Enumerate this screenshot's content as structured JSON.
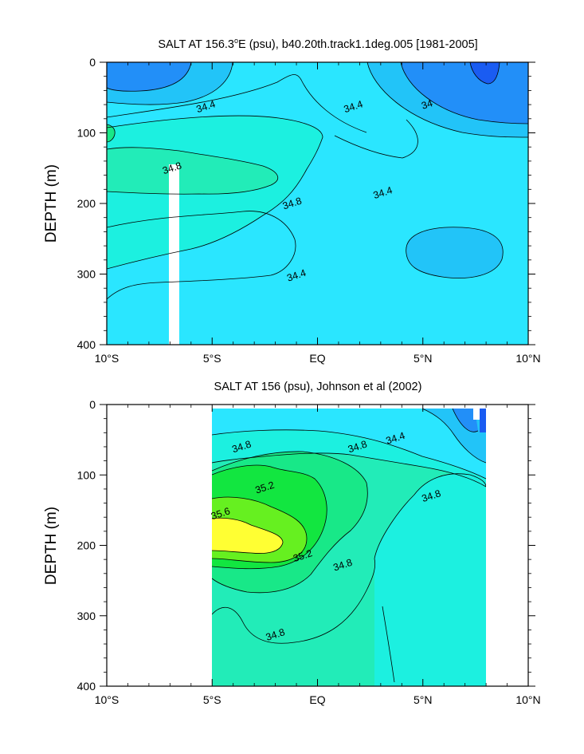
{
  "chart_data": [
    {
      "type": "heatmap",
      "subtype": "filled-contour",
      "title_prefix": "SALT AT 156.3",
      "title_sup": "o",
      "title_suffix": "E (psu), b40.20th.track1.1deg.005 [1981-2005]",
      "ylabel": "DEPTH (m)",
      "xlabel": "",
      "x_ticks": [
        {
          "value": -10,
          "label": "10°S"
        },
        {
          "value": -5,
          "label": "5°S"
        },
        {
          "value": 0,
          "label": "EQ"
        },
        {
          "value": 5,
          "label": "5°N"
        },
        {
          "value": 10,
          "label": "10°N"
        }
      ],
      "y_ticks": [
        0,
        100,
        200,
        300,
        400
      ],
      "xlim": [
        -10,
        10
      ],
      "ylim": [
        400,
        0
      ],
      "y_reversed": true,
      "missing_data_column_lat": [
        -7.0,
        -6.6
      ],
      "missing_data_column_depth": [
        145,
        400
      ],
      "contour_interval": 0.2,
      "contour_labels": [
        {
          "text": "34.4",
          "lat": -5.3,
          "depth": 63
        },
        {
          "text": "34.4",
          "lat": 1.7,
          "depth": 63
        },
        {
          "text": "34",
          "lat": 5.2,
          "depth": 60
        },
        {
          "text": "34.8",
          "lat": -6.9,
          "depth": 150
        },
        {
          "text": "34.8",
          "lat": -1.2,
          "depth": 200
        },
        {
          "text": "34.4",
          "lat": 3.1,
          "depth": 185
        },
        {
          "text": "34.4",
          "lat": -1.0,
          "depth": 302
        }
      ],
      "features": [
        {
          "salinity_max": 34.9,
          "lat": -10,
          "depth": 165,
          "note": "salty core at 10°S"
        },
        {
          "salinity_min": 33.9,
          "lat": 7.5,
          "depth": 10,
          "note": "fresh surface pool near 8°N"
        },
        {
          "salinity_min": 34.3,
          "lat": 6.6,
          "depth": 280,
          "note": "fresh lens at depth north of equator"
        },
        {
          "salinity": 34.2,
          "lat": -9.0,
          "depth": 10,
          "note": "fresh surface water near 9°S"
        }
      ],
      "colors": {
        "s_lt_34": "#1a5cf2",
        "s_34_342": "#228ff8",
        "s_342_344": "#22c4f8",
        "s_344_346": "#2ae6ff",
        "s_346_348": "#1cf0e0",
        "s_348_350": "#22ecb8",
        "s_350_352": "#18e888",
        "s_352_354": "#12e640",
        "s_354_356": "#66f020",
        "s_gt_356": "#ffff33"
      }
    },
    {
      "type": "heatmap",
      "subtype": "filled-contour",
      "title": "SALT AT 156 (psu), Johnson et al (2002)",
      "ylabel": "DEPTH (m)",
      "xlabel": "",
      "x_ticks": [
        {
          "value": -10,
          "label": "10°S"
        },
        {
          "value": -5,
          "label": "5°S"
        },
        {
          "value": 0,
          "label": "EQ"
        },
        {
          "value": 5,
          "label": "5°N"
        },
        {
          "value": 10,
          "label": "10°N"
        }
      ],
      "y_ticks": [
        0,
        100,
        200,
        300,
        400
      ],
      "xlim": [
        -10,
        10
      ],
      "ylim": [
        400,
        0
      ],
      "y_reversed": true,
      "data_lat_range": [
        -5,
        8
      ],
      "contour_interval": 0.2,
      "contour_labels": [
        {
          "text": "34.8",
          "lat": -3.6,
          "depth": 60
        },
        {
          "text": "34.4",
          "lat": 3.7,
          "depth": 48
        },
        {
          "text": "34.8",
          "lat": 1.9,
          "depth": 60
        },
        {
          "text": "35.2",
          "lat": -2.5,
          "depth": 118
        },
        {
          "text": "35.6",
          "lat": -4.6,
          "depth": 155
        },
        {
          "text": "35.2",
          "lat": -0.7,
          "depth": 215
        },
        {
          "text": "34.8",
          "lat": 1.2,
          "depth": 228
        },
        {
          "text": "34.8",
          "lat": 5.4,
          "depth": 130
        },
        {
          "text": "34.8",
          "lat": -2.0,
          "depth": 327
        }
      ],
      "features": [
        {
          "salinity_max": 35.7,
          "lat": -4.3,
          "depth": 175,
          "note": "high-salinity core south of equator"
        },
        {
          "salinity_min": 34.0,
          "lat": 7.6,
          "depth": 15,
          "note": "fresh surface water near 8°N"
        },
        {
          "salinity": 34.6,
          "lat": 6.0,
          "depth": 250,
          "note": "fresher water at depth north of equator"
        }
      ],
      "colors": {
        "s_lt_34": "#1a5cf2",
        "s_34_342": "#228ff8",
        "s_342_344": "#22c4f8",
        "s_344_346": "#2ae6ff",
        "s_346_348": "#1cf0e0",
        "s_348_350": "#22ecb8",
        "s_350_352": "#18e888",
        "s_352_354": "#12e640",
        "s_354_356": "#66f020",
        "s_gt_356": "#ffff33"
      }
    }
  ]
}
